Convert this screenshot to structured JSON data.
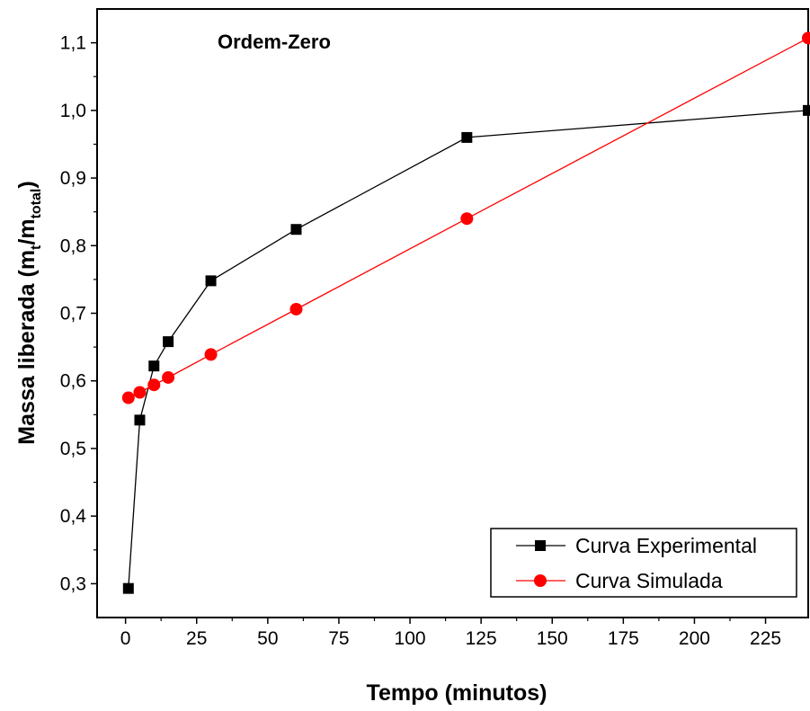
{
  "chart_data": {
    "type": "line",
    "annotation": "Ordem-Zero",
    "xlabel": "Tempo (minutos)",
    "ylabel": {
      "main": "Massa liberada (m",
      "sub1": "t",
      "mid": "/m",
      "sub2": "total",
      "end": ")"
    },
    "xlim": [
      -10,
      240
    ],
    "ylim": [
      0.25,
      1.15
    ],
    "xticks": [
      {
        "value": 0,
        "label": "0"
      },
      {
        "value": 25,
        "label": "25"
      },
      {
        "value": 50,
        "label": "50"
      },
      {
        "value": 75,
        "label": "75"
      },
      {
        "value": 100,
        "label": "100"
      },
      {
        "value": 125,
        "label": "125"
      },
      {
        "value": 150,
        "label": "150"
      },
      {
        "value": 175,
        "label": "175"
      },
      {
        "value": 200,
        "label": "200"
      },
      {
        "value": 225,
        "label": "225"
      }
    ],
    "yticks": [
      {
        "value": 0.3,
        "label": "0,3"
      },
      {
        "value": 0.4,
        "label": "0,4"
      },
      {
        "value": 0.5,
        "label": "0,5"
      },
      {
        "value": 0.6,
        "label": "0,6"
      },
      {
        "value": 0.7,
        "label": "0,7"
      },
      {
        "value": 0.8,
        "label": "0,8"
      },
      {
        "value": 0.9,
        "label": "0,9"
      },
      {
        "value": 1.0,
        "label": "1,0"
      },
      {
        "value": 1.1,
        "label": "1,1"
      }
    ],
    "series": [
      {
        "name": "Curva Experimental",
        "color": "#000000",
        "marker": "square",
        "x": [
          1,
          5,
          10,
          15,
          30,
          60,
          120,
          240
        ],
        "y": [
          0.293,
          0.542,
          0.622,
          0.658,
          0.748,
          0.824,
          0.96,
          1.0
        ]
      },
      {
        "name": "Curva Simulada",
        "color": "#ff0000",
        "marker": "circle",
        "x": [
          1,
          5,
          10,
          15,
          30,
          60,
          120,
          240
        ],
        "y": [
          0.575,
          0.583,
          0.594,
          0.605,
          0.639,
          0.706,
          0.84,
          1.107
        ]
      }
    ],
    "legend_position": "bottom-right",
    "grid": false
  }
}
